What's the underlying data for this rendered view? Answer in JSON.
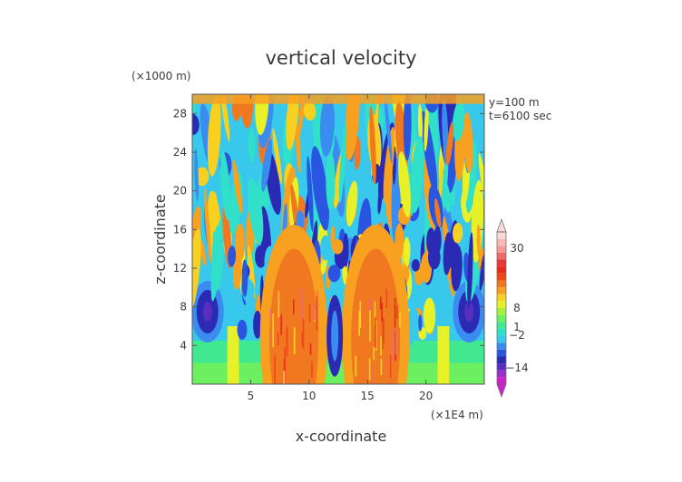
{
  "chart_data": {
    "type": "heatmap",
    "title": "vertical velocity",
    "xlabel": "x-coordinate",
    "ylabel": "z-coordinate",
    "x_unit": "(×1E4 m)",
    "y_unit": "(×1000 m)",
    "annotations": [
      "y=100 m",
      "t=6100 sec"
    ],
    "xlim": [
      0,
      25
    ],
    "ylim": [
      0,
      30
    ],
    "x_ticks": [
      5,
      10,
      15,
      20
    ],
    "y_ticks": [
      4,
      8,
      12,
      16,
      20,
      24,
      28
    ],
    "grid": false,
    "colorbar": {
      "placement": "right",
      "range": [
        -20,
        36
      ],
      "tick_values": [
        30,
        8,
        1,
        -2,
        -14
      ],
      "tick_labels": [
        "30",
        "8",
        "1",
        "−2",
        "−14"
      ],
      "colors": [
        "#d020d0",
        "#9a30c8",
        "#5a2fc0",
        "#2a2ab4",
        "#2a55e0",
        "#3a8cf0",
        "#38c8ec",
        "#30e0c8",
        "#40e890",
        "#6cf060",
        "#a6f040",
        "#e8f028",
        "#f8d020",
        "#f8a020",
        "#f07820",
        "#f04818",
        "#e82818",
        "#e83838",
        "#f06a6a",
        "#f89898",
        "#f8b8b8",
        "#f8dada"
      ]
    },
    "field": {
      "description": "vertical velocity w(x,z) at y=100 m, t=6100 sec",
      "features": [
        {
          "kind": "updraft-core",
          "x_range": [
            6.5,
            11
          ],
          "z_range": [
            0.5,
            12
          ],
          "level": "8 to 30"
        },
        {
          "kind": "updraft-core",
          "x_range": [
            13.5,
            18
          ],
          "z_range": [
            0.5,
            12
          ],
          "level": "8 to 30"
        },
        {
          "kind": "downdraft",
          "x": 1.5,
          "z": 7.5,
          "level": "-14 to -2"
        },
        {
          "kind": "downdraft",
          "x": 23.5,
          "z": 7.5,
          "level": "-14 to -2"
        },
        {
          "kind": "uniform-band",
          "x_range": [
            3,
            4
          ],
          "z_range": [
            0,
            6
          ],
          "level": "1 to 8"
        },
        {
          "kind": "uniform-band",
          "x_range": [
            21,
            22
          ],
          "z_range": [
            0,
            6
          ],
          "level": "1 to 8"
        },
        {
          "kind": "gravity-wave-streaks",
          "x_range": [
            0,
            25
          ],
          "z_range": [
            12,
            30
          ],
          "level": "-14 to 8"
        }
      ]
    }
  }
}
